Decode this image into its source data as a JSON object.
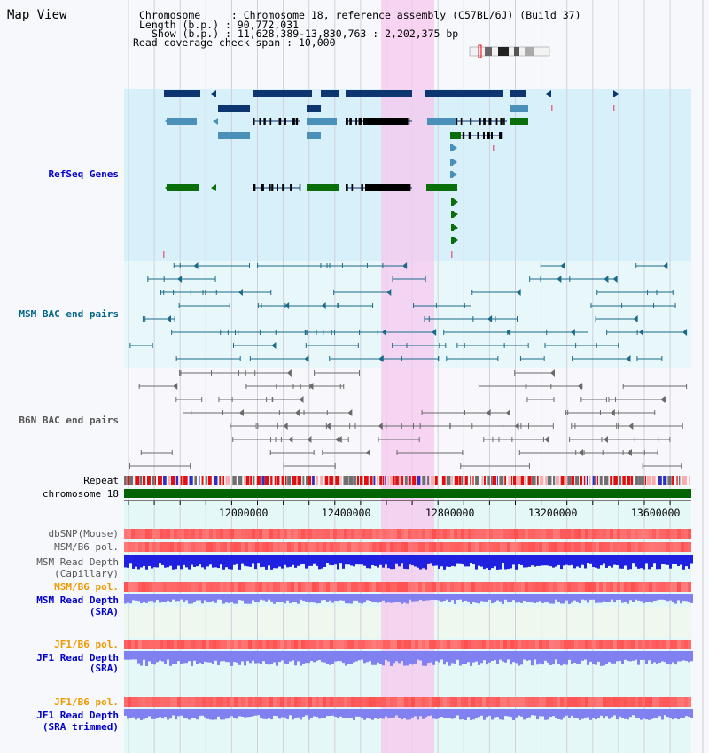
{
  "header": {
    "title": "Map View",
    "chromosome_label": "Chromosome",
    "chromosome_value": "Chromosome 18, reference assembly (C57BL/6J) (Build 37)",
    "length_label": "Length (b.p.)",
    "length_value": "90,772,031",
    "show_label": "Show (b.p.)",
    "show_value": "11,628,389-13,830,763 : 2,202,375 bp",
    "coverage_label": "Read coverage check span",
    "coverage_value": "10,000"
  },
  "tracks": {
    "refseq": "RefSeq Genes",
    "msm_bac": "MSM BAC end pairs",
    "b6n_bac": "B6N BAC end pairs",
    "repeat": "Repeat",
    "chromosome": "chromosome 18",
    "dbsnp": "dbSNP(Mouse)",
    "msm_b6_pol_1": "MSM/B6 pol.",
    "msm_read_depth_cap": "MSM Read Depth",
    "msm_read_depth_cap_sub": "(Capillary)",
    "msm_b6_pol_2": "MSM/B6 pol.",
    "msm_read_depth_sra": "MSM Read Depth",
    "msm_read_depth_sra_sub": "(SRA)",
    "jf1_b6_pol_1": "JF1/B6 pol.",
    "jf1_read_depth_sra": "JF1 Read Depth",
    "jf1_read_depth_sra_sub": "(SRA)",
    "jf1_b6_pol_2": "JF1/B6 pol.",
    "jf1_read_depth_trim": "JF1 Read Depth",
    "jf1_read_depth_trim_sub": "(SRA trimmed)"
  },
  "axis": {
    "ticks": [
      "12000000",
      "12400000",
      "12800000",
      "13200000",
      "13600000"
    ]
  },
  "colors": {
    "highlight": "#f7c8ef",
    "refseq_bg": "#d8f0fa",
    "bac_bg": "#e8f8fa",
    "gene_dark": "#0d3570",
    "gene_mid": "#4a90b8",
    "gene_green": "#0a6e0a",
    "chromosome": "#006400",
    "depth_blue": "#2020e0",
    "depth_light": "#8080f0"
  }
}
